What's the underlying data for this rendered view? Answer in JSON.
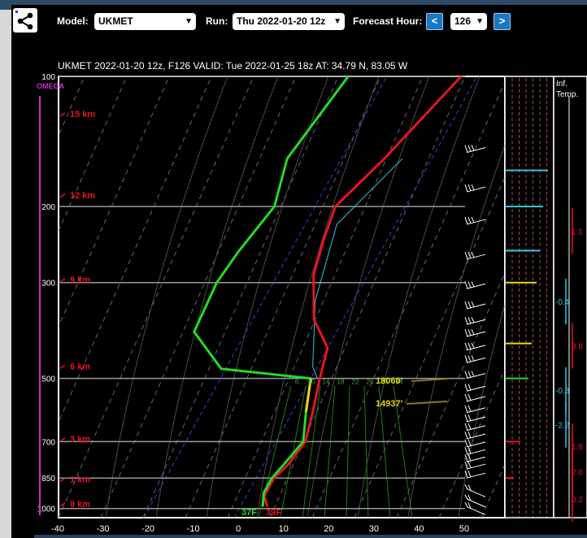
{
  "toolbar": {
    "model_label": "Model:",
    "model_value": "UKMET",
    "run_label": "Run:",
    "run_value": "Thu 2022-01-20 12z",
    "forecast_label": "Forecast Hour:",
    "prev_label": "<",
    "hour_value": "126",
    "next_label": ">"
  },
  "chart_data": {
    "type": "skew-t",
    "title": "UKMET 2022-01-20 12z, F126  VALID: Tue 2022-01-25 18z  AT: 34.79 N, 83.05 W",
    "omega_label": "OMEGA",
    "xlim": [
      -40,
      50
    ],
    "x_ticks": [
      "-40",
      "-30",
      "-20",
      "-10",
      "0",
      "10",
      "20",
      "30",
      "40",
      "50"
    ],
    "pressure_levels": [
      {
        "p": 100,
        "label": "100"
      },
      {
        "p": 200,
        "label": "200"
      },
      {
        "p": 300,
        "label": "300"
      },
      {
        "p": 500,
        "label": "500"
      },
      {
        "p": 700,
        "label": "700"
      },
      {
        "p": 850,
        "label": "850"
      },
      {
        "p": 1000,
        "label": "1000"
      }
    ],
    "height_labels": [
      {
        "km": 15,
        "label": "15 km",
        "p": 122
      },
      {
        "km": 12,
        "label": "12 km",
        "p": 188
      },
      {
        "km": 9,
        "label": "9 km",
        "p": 295
      },
      {
        "km": 6,
        "label": "6 km",
        "p": 468
      },
      {
        "km": 3,
        "label": "3 km",
        "p": 690
      },
      {
        "km": 1,
        "label": "1 km",
        "p": 855
      },
      {
        "km": 0,
        "label": "0 km",
        "p": 975
      }
    ],
    "temperature_series": {
      "name": "Temperature",
      "color": "#e8141e",
      "points": [
        [
          -3.5,
          100
        ],
        [
          -10.5,
          155
        ],
        [
          -15.5,
          200
        ],
        [
          -14,
          240
        ],
        [
          -12,
          288
        ],
        [
          -6.5,
          365
        ],
        [
          0,
          425
        ],
        [
          2,
          500
        ],
        [
          4.5,
          597
        ],
        [
          6.5,
          700
        ],
        [
          5.5,
          790
        ],
        [
          4,
          850
        ],
        [
          4,
          935
        ],
        [
          6,
          990
        ]
      ]
    },
    "dewpoint_series": {
      "name": "Dewpoint",
      "color": "#22dd22",
      "points": [
        [
          -28.5,
          100
        ],
        [
          -32,
          155
        ],
        [
          -29,
          200
        ],
        [
          -31.5,
          255
        ],
        [
          -32.5,
          300
        ],
        [
          -31.5,
          390
        ],
        [
          -21,
          475
        ],
        [
          0,
          500
        ],
        [
          3,
          597
        ],
        [
          6,
          700
        ],
        [
          4.5,
          790
        ],
        [
          3.5,
          850
        ],
        [
          3.5,
          920
        ],
        [
          5,
          990
        ]
      ]
    },
    "parcel_series": {
      "name": "Parcel",
      "color": "#31c7e5",
      "points": [
        [
          -6.5,
          155
        ],
        [
          -13,
          220
        ],
        [
          -8.5,
          330
        ],
        [
          -1,
          470
        ],
        [
          1.5,
          500
        ]
      ]
    },
    "mixing_ratio_labels": [
      "6",
      "10",
      "14",
      "18",
      "22",
      "26",
      "30",
      "34"
    ],
    "annotations": [
      {
        "text": "18060'",
        "p": 505,
        "t": 22
      },
      {
        "text": "14937'",
        "p": 570,
        "t": 24
      }
    ],
    "surface_labels": {
      "dewpoint": "37F",
      "temperature": "39F"
    },
    "right_panel": {
      "title_line1": "Inf.",
      "title_line2": "Temp.",
      "values": [
        {
          "text": "1.1",
          "color": "#e8141e",
          "p": 228
        },
        {
          "text": "-0.4",
          "color": "#31c7e5",
          "p": 332
        },
        {
          "text": "3.8",
          "color": "#e8141e",
          "p": 420
        },
        {
          "text": "-0.3",
          "color": "#31c7e5",
          "p": 532
        },
        {
          "text": "-2.2",
          "color": "#31c7e5",
          "p": 640
        },
        {
          "text": "1.9",
          "color": "#e8141e",
          "p": 718
        },
        {
          "text": "2.0",
          "color": "#e8141e",
          "p": 822
        },
        {
          "text": "0.2",
          "color": "#e8141e",
          "p": 950
        }
      ]
    },
    "omega_bars": [
      {
        "p": 165,
        "color": "#31c7e5",
        "len": 52
      },
      {
        "p": 200,
        "color": "#31c7e5",
        "len": 46
      },
      {
        "p": 253,
        "color": "#31c7e5",
        "len": 42
      },
      {
        "p": 300,
        "color": "#e8d31a",
        "len": 38
      },
      {
        "p": 415,
        "color": "#e8d31a",
        "len": 32
      },
      {
        "p": 500,
        "color": "#22dd22",
        "len": 28
      },
      {
        "p": 700,
        "color": "#e8141e",
        "len": 18
      },
      {
        "p": 850,
        "color": "#e8141e",
        "len": 10
      }
    ],
    "colors": {
      "background": "#000000",
      "isobar": "#9a9a9a",
      "axis_text": "#ffffff",
      "height_text": "#e8141e",
      "omega": "#cc2fcc",
      "dry_adiabat": "#666666",
      "isotherm_zero": "#3340d8",
      "mixing_ratio": "#1e7a1e"
    }
  }
}
